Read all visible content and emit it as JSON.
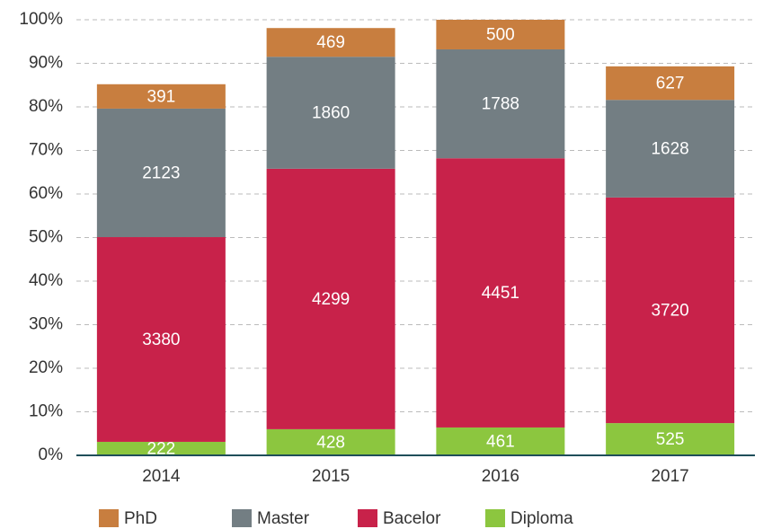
{
  "chart_data": {
    "type": "stacked_bar",
    "categories": [
      "2014",
      "2015",
      "2016",
      "2017"
    ],
    "series": [
      {
        "name": "Diploma",
        "color": "#8cc63f",
        "values": [
          3.1,
          6.0,
          6.4,
          7.4
        ],
        "counts": [
          222,
          428,
          461,
          525
        ]
      },
      {
        "name": "Bacelor",
        "color": "#c8224a",
        "values": [
          47.0,
          59.8,
          61.8,
          51.8
        ],
        "counts": [
          3380,
          4299,
          4451,
          3720
        ]
      },
      {
        "name": "Master",
        "color": "#737e83",
        "values": [
          29.5,
          25.7,
          25.0,
          22.4
        ],
        "counts": [
          2123,
          1860,
          1788,
          1628
        ]
      },
      {
        "name": "PhD",
        "color": "#c87e3f",
        "values": [
          5.6,
          6.6,
          6.8,
          7.7
        ],
        "counts": [
          391,
          469,
          500,
          627
        ]
      }
    ],
    "ylim": [
      0,
      100
    ],
    "yticks": [
      {
        "value": 0,
        "label": "0%"
      },
      {
        "value": 10,
        "label": "10%"
      },
      {
        "value": 20,
        "label": "20%"
      },
      {
        "value": 30,
        "label": "30%"
      },
      {
        "value": 40,
        "label": "40%"
      },
      {
        "value": 50,
        "label": "50%"
      },
      {
        "value": 60,
        "label": "60%"
      },
      {
        "value": 70,
        "label": "70%"
      },
      {
        "value": 80,
        "label": "80%"
      },
      {
        "value": 90,
        "label": "90%"
      },
      {
        "value": 100,
        "label": "100%"
      }
    ],
    "grid": true,
    "legend": "bottom"
  }
}
